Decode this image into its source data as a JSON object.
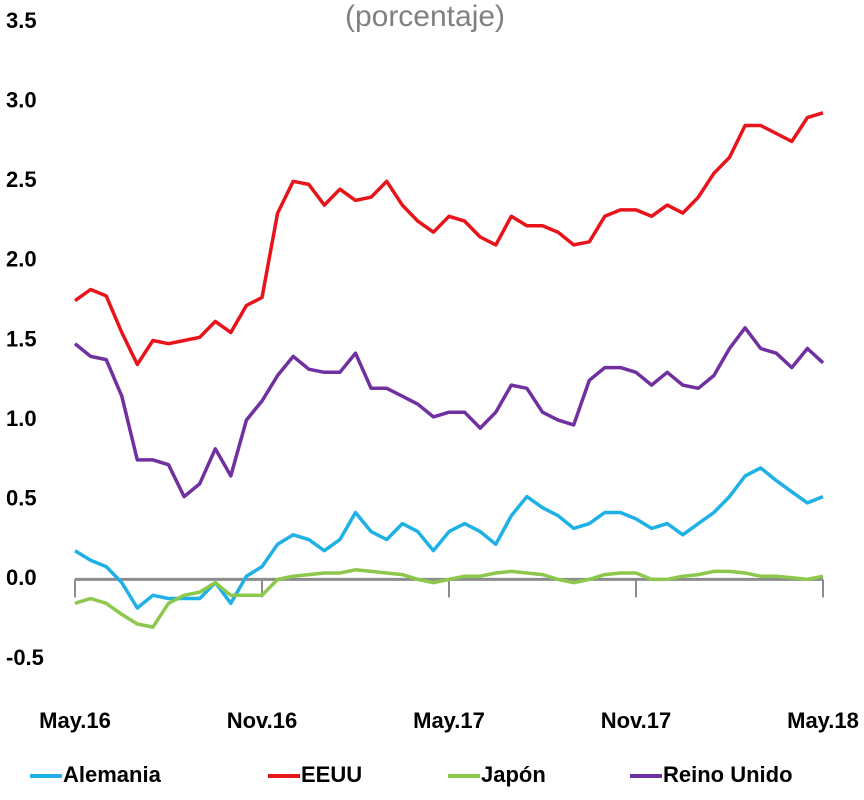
{
  "chart_data": {
    "type": "line",
    "subtitle": "(porcentaje)",
    "categories": [
      "May.16",
      null,
      null,
      null,
      null,
      null,
      null,
      null,
      null,
      null,
      null,
      null,
      "Nov.16",
      null,
      null,
      null,
      null,
      null,
      null,
      null,
      null,
      null,
      null,
      null,
      "May.17",
      null,
      null,
      null,
      null,
      null,
      null,
      null,
      null,
      null,
      null,
      null,
      "Nov.17",
      null,
      null,
      null,
      null,
      null,
      null,
      null,
      null,
      null,
      null,
      null,
      "May.18"
    ],
    "series": [
      {
        "name": "Alemania",
        "color": "#1fb0e6",
        "values": [
          0.18,
          0.12,
          0.08,
          -0.02,
          -0.18,
          -0.1,
          -0.12,
          -0.12,
          -0.12,
          -0.02,
          -0.15,
          0.02,
          0.08,
          0.22,
          0.28,
          0.25,
          0.18,
          0.25,
          0.42,
          0.3,
          0.25,
          0.35,
          0.3,
          0.18,
          0.3,
          0.35,
          0.3,
          0.22,
          0.4,
          0.52,
          0.45,
          0.4,
          0.32,
          0.35,
          0.42,
          0.42,
          0.38,
          0.32,
          0.35,
          0.28,
          0.35,
          0.42,
          0.52,
          0.65,
          0.7,
          0.62,
          0.55,
          0.48,
          0.52
        ]
      },
      {
        "name": "EEUU",
        "color": "#e8141b",
        "values": [
          1.75,
          1.82,
          1.78,
          1.55,
          1.35,
          1.5,
          1.48,
          1.5,
          1.52,
          1.62,
          1.55,
          1.72,
          1.77,
          2.3,
          2.5,
          2.48,
          2.35,
          2.45,
          2.38,
          2.4,
          2.5,
          2.35,
          2.25,
          2.18,
          2.28,
          2.25,
          2.15,
          2.1,
          2.28,
          2.22,
          2.22,
          2.18,
          2.1,
          2.12,
          2.28,
          2.32,
          2.32,
          2.28,
          2.35,
          2.3,
          2.4,
          2.55,
          2.65,
          2.85,
          2.85,
          2.8,
          2.75,
          2.9,
          2.93
        ]
      },
      {
        "name": "Japón",
        "color": "#8cc84b",
        "values": [
          -0.15,
          -0.12,
          -0.15,
          -0.22,
          -0.28,
          -0.3,
          -0.15,
          -0.1,
          -0.08,
          -0.02,
          -0.1,
          -0.1,
          -0.1,
          0.0,
          0.02,
          0.03,
          0.04,
          0.04,
          0.06,
          0.05,
          0.04,
          0.03,
          0.0,
          -0.02,
          0.0,
          0.02,
          0.02,
          0.04,
          0.05,
          0.04,
          0.03,
          0.0,
          -0.02,
          0.0,
          0.03,
          0.04,
          0.04,
          0.0,
          0.0,
          0.02,
          0.03,
          0.05,
          0.05,
          0.04,
          0.02,
          0.02,
          0.01,
          0.0,
          0.02
        ]
      },
      {
        "name": "Reino Unido",
        "color": "#7030a0",
        "values": [
          1.48,
          1.4,
          1.38,
          1.15,
          0.75,
          0.75,
          0.72,
          0.52,
          0.6,
          0.82,
          0.65,
          1.0,
          1.12,
          1.28,
          1.4,
          1.32,
          1.3,
          1.3,
          1.42,
          1.2,
          1.2,
          1.15,
          1.1,
          1.02,
          1.05,
          1.05,
          0.95,
          1.05,
          1.22,
          1.2,
          1.05,
          1.0,
          0.97,
          1.25,
          1.33,
          1.33,
          1.3,
          1.22,
          1.3,
          1.22,
          1.2,
          1.28,
          1.45,
          1.58,
          1.45,
          1.42,
          1.33,
          1.45,
          1.36
        ]
      }
    ],
    "ylim": [
      -0.5,
      3.5
    ],
    "yticks": [
      3.5,
      {
        "value": 3.0,
        "label": "3.0"
      },
      2.5,
      {
        "value": 2.0,
        "label": "2.0"
      },
      1.5,
      {
        "value": 1.0,
        "label": "1.0"
      },
      0.5,
      {
        "value": 0.0,
        "label": "0.0"
      },
      -0.5
    ],
    "grid": false,
    "legend": "bottom"
  }
}
